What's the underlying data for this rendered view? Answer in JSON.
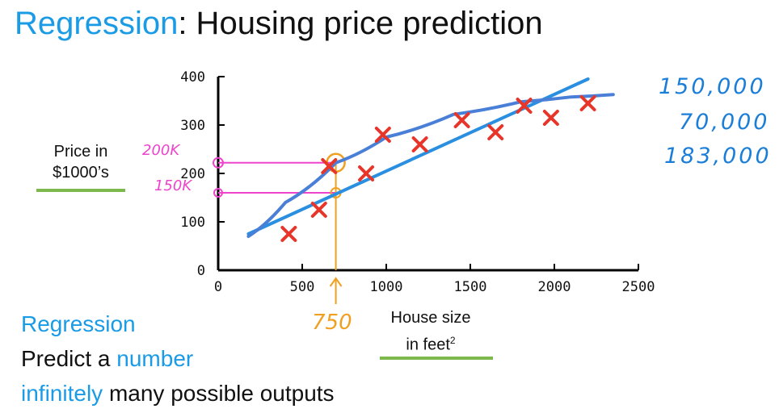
{
  "title": {
    "highlight": "Regression",
    "rest": ": Housing price prediction"
  },
  "chart_data": {
    "type": "scatter",
    "xlim": [
      0,
      2500
    ],
    "ylim": [
      0,
      400
    ],
    "xticks": [
      "0",
      "500",
      "1000",
      "1500",
      "2000",
      "2500"
    ],
    "yticks": [
      "0",
      "100",
      "200",
      "300",
      "400"
    ],
    "xlabel_line1": "House size",
    "xlabel_line2": "in feet",
    "xlabel_sup": "2",
    "ylabel_line1": "Price in",
    "ylabel_line2": "$1000’s",
    "points": [
      {
        "x": 420,
        "y": 75
      },
      {
        "x": 600,
        "y": 125
      },
      {
        "x": 660,
        "y": 215
      },
      {
        "x": 880,
        "y": 200
      },
      {
        "x": 980,
        "y": 280
      },
      {
        "x": 1200,
        "y": 260
      },
      {
        "x": 1450,
        "y": 310
      },
      {
        "x": 1650,
        "y": 285
      },
      {
        "x": 1820,
        "y": 340
      },
      {
        "x": 1980,
        "y": 315
      },
      {
        "x": 2200,
        "y": 345
      }
    ],
    "fit_line": {
      "x": [
        180,
        2200
      ],
      "y": [
        75,
        395
      ]
    },
    "fit_curve": [
      {
        "x": 180,
        "y": 70
      },
      {
        "x": 400,
        "y": 140
      },
      {
        "x": 700,
        "y": 222
      },
      {
        "x": 1000,
        "y": 275
      },
      {
        "x": 1400,
        "y": 322
      },
      {
        "x": 1800,
        "y": 348
      },
      {
        "x": 2100,
        "y": 358
      },
      {
        "x": 2350,
        "y": 363
      }
    ],
    "marker_x": 700,
    "marker_y_line": 160,
    "marker_y_curve": 222
  },
  "annotations": {
    "pink_top": "200K",
    "pink_bottom": "150K",
    "orange": "750",
    "blue_values": [
      "150,000",
      "70,000",
      "183,000"
    ]
  },
  "bottom": {
    "line1": "Regression",
    "line2_prefix": "Predict a ",
    "line2_highlight": "number",
    "line3_highlight": "infinitely",
    "line3_rest": " many possible outputs"
  },
  "colors": {
    "accent": "#1a9be6",
    "marker": "#e8352a",
    "line": "#2a8fe0",
    "curve": "#4a7fd8",
    "pink": "#ee44cc",
    "orange": "#f0a020",
    "underline": "#7db84c"
  }
}
